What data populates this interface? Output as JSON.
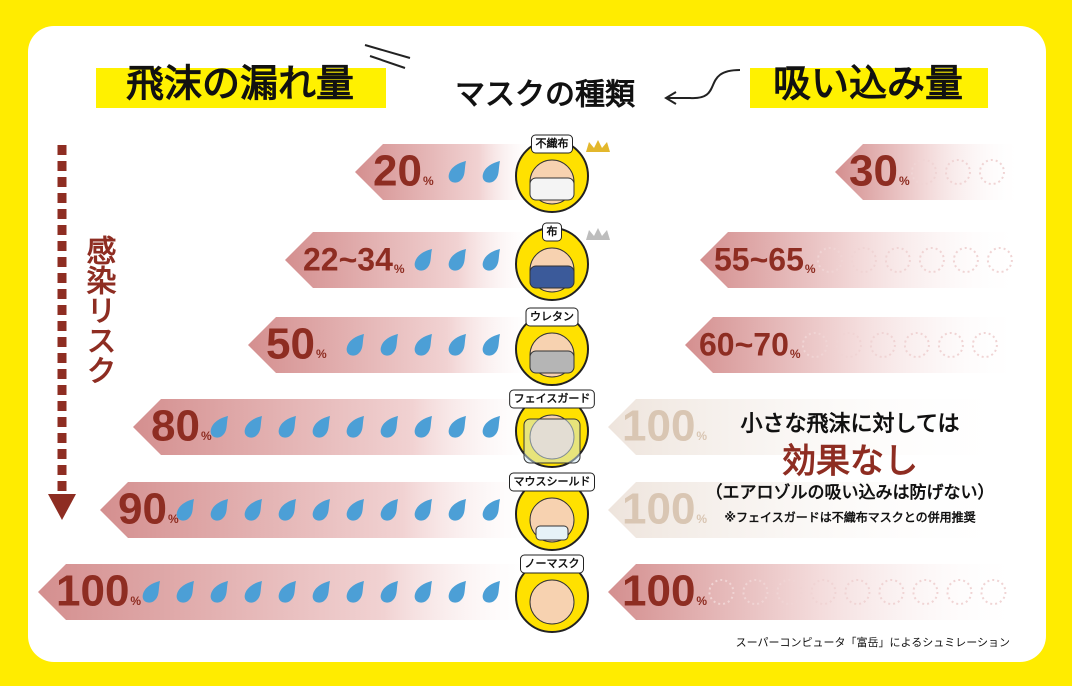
{
  "header": {
    "left_title": "飛沫の漏れ量",
    "center_title": "マスクの種類",
    "right_title": "吸い込み量"
  },
  "side_label": "感染リスク",
  "rows": [
    {
      "mask": "不織布",
      "emission": "20",
      "inhalation": "30",
      "unit": "%"
    },
    {
      "mask": "布",
      "emission": "22~34",
      "inhalation": "55~65",
      "unit": "%"
    },
    {
      "mask": "ウレタン",
      "emission": "50",
      "inhalation": "60~70",
      "unit": "%"
    },
    {
      "mask": "フェイスガード",
      "emission": "80",
      "inhalation": "100",
      "unit": "%"
    },
    {
      "mask": "マウスシールド",
      "emission": "90",
      "inhalation": "100",
      "unit": "%"
    },
    {
      "mask": "ノーマスク",
      "emission": "100",
      "inhalation": "100",
      "unit": "%"
    }
  ],
  "note": {
    "line1": "小さな飛沫に対しては",
    "emphasis": "効果なし",
    "line2": "（エアロゾルの吸い込みは防げない）",
    "footnote": "※フェイスガードは不織布マスクとの併用推奨"
  },
  "footer": "スーパーコンピュータ「富岳」によるシュミレーション"
}
